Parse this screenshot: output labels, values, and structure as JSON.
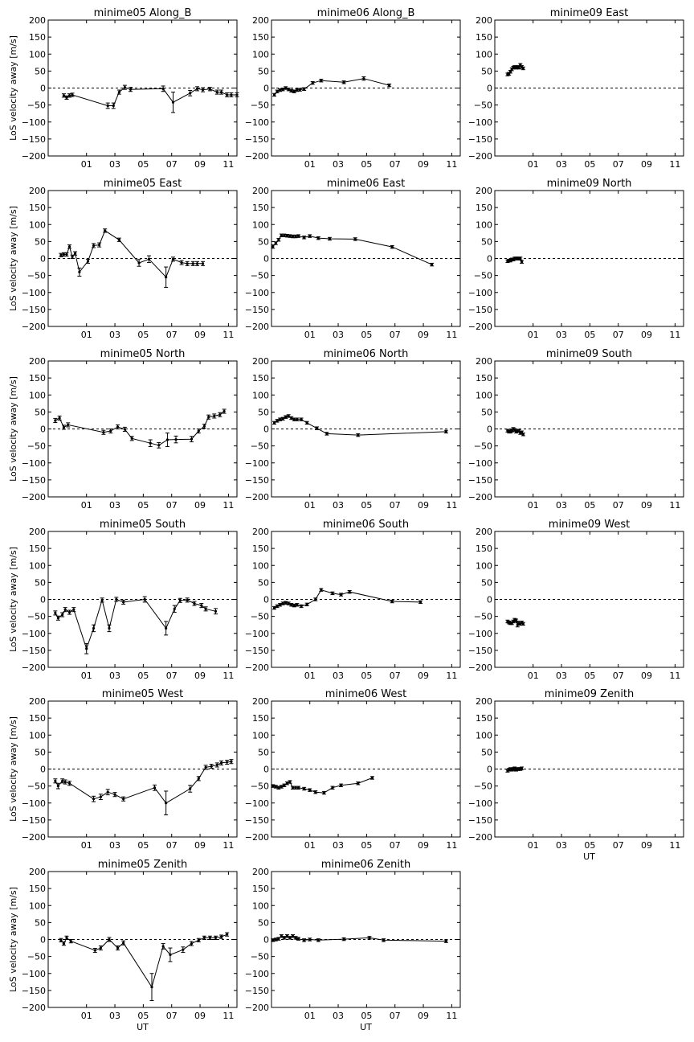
{
  "ylabel": "LoS velocity away [m/s]",
  "xlabel": "UT",
  "yticks": [
    "200",
    "150",
    "100",
    "50",
    "0",
    "−50",
    "−100",
    "−150",
    "−200"
  ],
  "xticks": [
    "01",
    "03",
    "05",
    "07",
    "09",
    "11"
  ],
  "chart_data": [
    {
      "type": "line",
      "title": "minime05 Along_B",
      "xlim": [
        -1.7,
        11.6
      ],
      "ylim": [
        -200,
        200
      ],
      "x": [
        -0.6,
        -0.4,
        -0.2,
        0.0,
        2.5,
        2.9,
        3.3,
        3.7,
        4.1,
        6.4,
        7.1,
        8.3,
        8.8,
        9.2,
        9.7,
        10.2,
        10.5,
        10.9,
        11.2,
        11.6
      ],
      "y": [
        -22,
        -28,
        -22,
        -20,
        -52,
        -52,
        -12,
        2,
        -4,
        -2,
        -42,
        -15,
        -2,
        -5,
        -3,
        -12,
        -12,
        -20,
        -20,
        -20
      ],
      "err": [
        5,
        5,
        5,
        5,
        8,
        8,
        6,
        6,
        6,
        8,
        30,
        8,
        6,
        6,
        5,
        6,
        6,
        6,
        6,
        6
      ]
    },
    {
      "type": "line",
      "title": "minime06 Along_B",
      "xlim": [
        -1.7,
        11.6
      ],
      "ylim": [
        -200,
        200
      ],
      "x": [
        -1.5,
        -1.3,
        -1.1,
        -0.9,
        -0.7,
        -0.5,
        -0.3,
        -0.1,
        0.1,
        0.3,
        0.6,
        1.2,
        1.8,
        3.4,
        4.8,
        6.6
      ],
      "y": [
        -20,
        -10,
        -6,
        -4,
        0,
        -4,
        -8,
        -10,
        -6,
        -5,
        -3,
        15,
        22,
        17,
        28,
        8
      ],
      "err": [
        4,
        4,
        4,
        4,
        4,
        4,
        4,
        4,
        4,
        4,
        4,
        4,
        4,
        4,
        5,
        4
      ]
    },
    {
      "type": "line",
      "title": "minime09 East",
      "xlim": [
        -1.7,
        11.6
      ],
      "ylim": [
        -200,
        200
      ],
      "x": [
        -0.8,
        -0.7,
        -0.6,
        -0.5,
        -0.4,
        -0.3,
        -0.2,
        -0.1,
        0.0,
        0.1,
        0.2,
        0.3
      ],
      "y": [
        40,
        42,
        48,
        55,
        60,
        62,
        60,
        62,
        60,
        68,
        62,
        58
      ],
      "err": [
        4,
        4,
        4,
        4,
        4,
        4,
        4,
        4,
        4,
        4,
        4,
        4
      ]
    },
    {
      "type": "line",
      "title": "minime05 East",
      "xlim": [
        -1.7,
        11.6
      ],
      "ylim": [
        -200,
        200
      ],
      "x": [
        -0.8,
        -0.6,
        -0.4,
        -0.2,
        0.0,
        0.2,
        0.5,
        1.1,
        1.5,
        1.9,
        2.3,
        3.3,
        4.7,
        5.4,
        6.6,
        7.1,
        7.7,
        8.1,
        8.5,
        8.8,
        9.2
      ],
      "y": [
        10,
        12,
        12,
        35,
        5,
        15,
        -40,
        -8,
        38,
        40,
        82,
        55,
        -13,
        -2,
        -55,
        -2,
        -12,
        -15,
        -15,
        -15,
        -15
      ],
      "err": [
        5,
        5,
        5,
        5,
        5,
        5,
        12,
        6,
        6,
        6,
        5,
        5,
        10,
        10,
        30,
        6,
        6,
        6,
        6,
        6,
        6
      ]
    },
    {
      "type": "line",
      "title": "minime06 East",
      "xlim": [
        -1.7,
        11.6
      ],
      "ylim": [
        -200,
        200
      ],
      "x": [
        -1.6,
        -1.4,
        -1.2,
        -1.0,
        -0.8,
        -0.6,
        -0.4,
        -0.2,
        0.0,
        0.2,
        0.6,
        1.0,
        1.6,
        2.4,
        4.2,
        6.8,
        9.6
      ],
      "y": [
        35,
        45,
        55,
        68,
        68,
        67,
        66,
        65,
        65,
        66,
        62,
        66,
        60,
        58,
        57,
        34,
        -18
      ],
      "err": [
        5,
        4,
        4,
        4,
        4,
        4,
        4,
        4,
        4,
        4,
        4,
        4,
        4,
        4,
        4,
        4,
        4
      ]
    },
    {
      "type": "line",
      "title": "minime09 North",
      "xlim": [
        -1.7,
        11.6
      ],
      "ylim": [
        -200,
        200
      ],
      "x": [
        -0.8,
        -0.7,
        -0.6,
        -0.5,
        -0.4,
        -0.3,
        -0.2,
        -0.1,
        0.0,
        0.1,
        0.2
      ],
      "y": [
        -8,
        -6,
        -6,
        -3,
        -3,
        0,
        0,
        0,
        0,
        0,
        -10
      ],
      "err": [
        4,
        4,
        4,
        4,
        4,
        4,
        4,
        4,
        4,
        4,
        4
      ]
    },
    {
      "type": "line",
      "title": "minime05 North",
      "xlim": [
        -1.7,
        11.6
      ],
      "ylim": [
        -200,
        200
      ],
      "x": [
        -1.2,
        -0.9,
        -0.6,
        -0.3,
        2.2,
        2.7,
        3.2,
        3.7,
        4.2,
        5.5,
        6.1,
        6.7,
        7.3,
        8.4,
        8.9,
        9.3,
        9.6,
        10.0,
        10.4,
        10.7
      ],
      "y": [
        25,
        32,
        5,
        12,
        -10,
        -6,
        6,
        -1,
        -28,
        -42,
        -48,
        -32,
        -31,
        -30,
        -6,
        8,
        35,
        38,
        42,
        52
      ],
      "err": [
        6,
        6,
        6,
        6,
        6,
        6,
        6,
        6,
        6,
        10,
        8,
        20,
        10,
        8,
        6,
        6,
        6,
        6,
        6,
        6
      ]
    },
    {
      "type": "line",
      "title": "minime06 North",
      "xlim": [
        -1.7,
        11.6
      ],
      "ylim": [
        -200,
        200
      ],
      "x": [
        -1.5,
        -1.3,
        -1.1,
        -0.9,
        -0.7,
        -0.5,
        -0.3,
        -0.1,
        0.1,
        0.4,
        0.8,
        1.5,
        2.2,
        4.4,
        10.6
      ],
      "y": [
        18,
        24,
        28,
        30,
        35,
        38,
        32,
        28,
        28,
        28,
        18,
        2,
        -14,
        -18,
        -8
      ],
      "err": [
        4,
        4,
        4,
        4,
        4,
        4,
        4,
        4,
        4,
        4,
        4,
        4,
        4,
        4,
        4
      ]
    },
    {
      "type": "line",
      "title": "minime09 South",
      "xlim": [
        -1.7,
        11.6
      ],
      "ylim": [
        -200,
        200
      ],
      "x": [
        -0.8,
        -0.7,
        -0.6,
        -0.5,
        -0.4,
        -0.3,
        -0.2,
        -0.1,
        0.0,
        0.1,
        0.2,
        0.3
      ],
      "y": [
        -5,
        -8,
        -8,
        -5,
        0,
        -3,
        -8,
        -5,
        -6,
        -12,
        -10,
        -16
      ],
      "err": [
        4,
        4,
        4,
        4,
        4,
        4,
        4,
        4,
        4,
        4,
        4,
        4
      ]
    },
    {
      "type": "line",
      "title": "minime05 South",
      "xlim": [
        -1.7,
        11.6
      ],
      "ylim": [
        -200,
        200
      ],
      "x": [
        -1.2,
        -1.0,
        -0.7,
        -0.5,
        -0.2,
        0.1,
        1.0,
        1.5,
        2.1,
        2.6,
        3.1,
        3.6,
        5.1,
        6.6,
        7.2,
        7.6,
        8.1,
        8.6,
        9.1,
        9.4,
        10.1
      ],
      "y": [
        -40,
        -55,
        -45,
        -30,
        -38,
        -30,
        -145,
        -85,
        -2,
        -85,
        0,
        -8,
        0,
        -85,
        -28,
        -3,
        -2,
        -12,
        -18,
        -28,
        -35
      ],
      "err": [
        6,
        6,
        6,
        6,
        6,
        6,
        15,
        10,
        6,
        10,
        6,
        6,
        8,
        20,
        10,
        6,
        6,
        6,
        6,
        6,
        8
      ]
    },
    {
      "type": "line",
      "title": "minime06 South",
      "xlim": [
        -1.7,
        11.6
      ],
      "ylim": [
        -200,
        200
      ],
      "x": [
        -1.5,
        -1.3,
        -1.1,
        -0.9,
        -0.7,
        -0.5,
        -0.3,
        -0.1,
        0.1,
        0.4,
        0.8,
        1.4,
        1.8,
        2.6,
        3.2,
        3.8,
        6.8,
        8.8
      ],
      "y": [
        -25,
        -20,
        -16,
        -12,
        -10,
        -12,
        -16,
        -18,
        -16,
        -20,
        -15,
        0,
        28,
        18,
        14,
        22,
        -6,
        -8
      ],
      "err": [
        4,
        4,
        4,
        4,
        4,
        4,
        4,
        4,
        4,
        4,
        4,
        4,
        4,
        4,
        4,
        4,
        4,
        4
      ]
    },
    {
      "type": "line",
      "title": "minime09 West",
      "xlim": [
        -1.7,
        11.6
      ],
      "ylim": [
        -200,
        200
      ],
      "x": [
        -0.8,
        -0.7,
        -0.6,
        -0.5,
        -0.4,
        -0.3,
        -0.2,
        -0.1,
        0.0,
        0.1,
        0.2,
        0.3
      ],
      "y": [
        -65,
        -68,
        -70,
        -70,
        -65,
        -60,
        -62,
        -75,
        -70,
        -72,
        -68,
        -72
      ],
      "err": [
        4,
        4,
        4,
        4,
        4,
        4,
        4,
        6,
        6,
        4,
        4,
        4
      ]
    },
    {
      "type": "line",
      "title": "minime05 West",
      "xlim": [
        -1.7,
        11.6
      ],
      "ylim": [
        -200,
        200
      ],
      "x": [
        -1.2,
        -1.0,
        -0.7,
        -0.5,
        -0.2,
        1.5,
        2.0,
        2.5,
        3.0,
        3.6,
        5.8,
        6.6,
        8.3,
        8.9,
        9.4,
        9.8,
        10.2,
        10.5,
        10.9,
        11.2
      ],
      "y": [
        -35,
        -50,
        -35,
        -38,
        -42,
        -88,
        -82,
        -68,
        -75,
        -88,
        -55,
        -100,
        -58,
        -28,
        5,
        8,
        12,
        18,
        20,
        22
      ],
      "err": [
        6,
        8,
        6,
        6,
        6,
        8,
        8,
        8,
        6,
        6,
        8,
        35,
        10,
        6,
        6,
        6,
        6,
        6,
        6,
        6
      ]
    },
    {
      "type": "line",
      "title": "minime06 West",
      "xlim": [
        -1.7,
        11.6
      ],
      "ylim": [
        -200,
        200
      ],
      "x": [
        -1.6,
        -1.4,
        -1.2,
        -1.0,
        -0.8,
        -0.6,
        -0.4,
        -0.2,
        0.0,
        0.2,
        0.6,
        1.0,
        1.4,
        2.0,
        2.6,
        3.2,
        4.4,
        5.4
      ],
      "y": [
        -50,
        -52,
        -55,
        -52,
        -48,
        -42,
        -38,
        -55,
        -55,
        -55,
        -58,
        -62,
        -68,
        -70,
        -55,
        -48,
        -42,
        -26
      ],
      "err": [
        4,
        4,
        4,
        4,
        4,
        4,
        4,
        4,
        4,
        4,
        4,
        4,
        4,
        4,
        4,
        4,
        4,
        4
      ]
    },
    {
      "type": "line",
      "title": "minime09 Zenith",
      "xlim": [
        -1.7,
        11.6
      ],
      "ylim": [
        -200,
        200
      ],
      "x": [
        -0.8,
        -0.7,
        -0.6,
        -0.5,
        -0.4,
        -0.3,
        -0.2,
        -0.1,
        0.0,
        0.1,
        0.2
      ],
      "y": [
        -5,
        -2,
        0,
        -2,
        0,
        2,
        -2,
        0,
        0,
        0,
        2
      ],
      "err": [
        4,
        4,
        4,
        4,
        4,
        4,
        4,
        4,
        4,
        4,
        4
      ]
    },
    {
      "type": "line",
      "title": "minime05 Zenith",
      "xlim": [
        -1.7,
        11.6
      ],
      "ylim": [
        -200,
        200
      ],
      "x": [
        -0.8,
        -0.6,
        -0.4,
        -0.1,
        1.6,
        2.0,
        2.6,
        3.2,
        3.6,
        5.6,
        6.4,
        6.9,
        7.8,
        8.4,
        8.9,
        9.3,
        9.7,
        10.1,
        10.5,
        10.9
      ],
      "y": [
        -2,
        -12,
        5,
        -5,
        -32,
        -25,
        0,
        -25,
        -10,
        -140,
        -20,
        -45,
        -30,
        -12,
        -2,
        5,
        5,
        5,
        8,
        15
      ],
      "err": [
        5,
        5,
        5,
        5,
        6,
        6,
        6,
        6,
        6,
        40,
        8,
        20,
        8,
        6,
        5,
        5,
        5,
        5,
        5,
        5
      ]
    },
    {
      "type": "line",
      "title": "minime06 Zenith",
      "xlim": [
        -1.7,
        11.6
      ],
      "ylim": [
        -200,
        200
      ],
      "x": [
        -1.6,
        -1.4,
        -1.2,
        -1.0,
        -0.8,
        -0.6,
        -0.4,
        -0.2,
        0.0,
        0.2,
        0.6,
        1.0,
        1.6,
        3.4,
        5.2,
        6.2,
        10.6
      ],
      "y": [
        -2,
        0,
        2,
        10,
        5,
        10,
        5,
        10,
        5,
        2,
        -2,
        0,
        -2,
        1,
        5,
        -2,
        -5
      ],
      "err": [
        4,
        4,
        4,
        4,
        4,
        4,
        4,
        4,
        4,
        4,
        4,
        4,
        4,
        4,
        4,
        4,
        4
      ]
    }
  ]
}
